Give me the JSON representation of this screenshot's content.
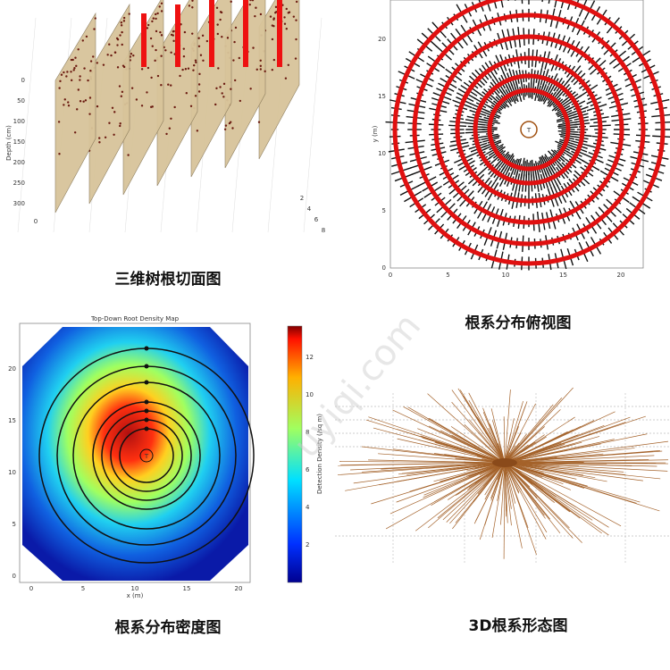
{
  "panels": [
    {
      "caption": "三维树根切面图",
      "y_label": "Depth (cm)",
      "yticks": [
        0,
        50,
        100,
        150,
        200,
        250,
        300
      ],
      "xticks": [
        0,
        2,
        4,
        6,
        8
      ]
    },
    {
      "caption": "根系分布俯视图",
      "y_label": "y (m)",
      "yticks": [
        0,
        5,
        10,
        15,
        20
      ],
      "xticks": [
        0,
        5,
        10,
        15,
        20
      ],
      "center_label": "T"
    },
    {
      "caption": "根系分布密度图",
      "title": "Top-Down Root Density Map",
      "x_label": "x (m)",
      "yticks": [
        0,
        5,
        10,
        15,
        20
      ],
      "xticks": [
        0,
        5,
        10,
        15,
        20
      ],
      "center_label": "T",
      "colorbar_label": "Detection Density (/sq m)",
      "colorbar_ticks": [
        2,
        4,
        6,
        8,
        10,
        12
      ]
    },
    {
      "caption": "3D根系形态图"
    }
  ],
  "watermark": "uyiqi.com"
}
